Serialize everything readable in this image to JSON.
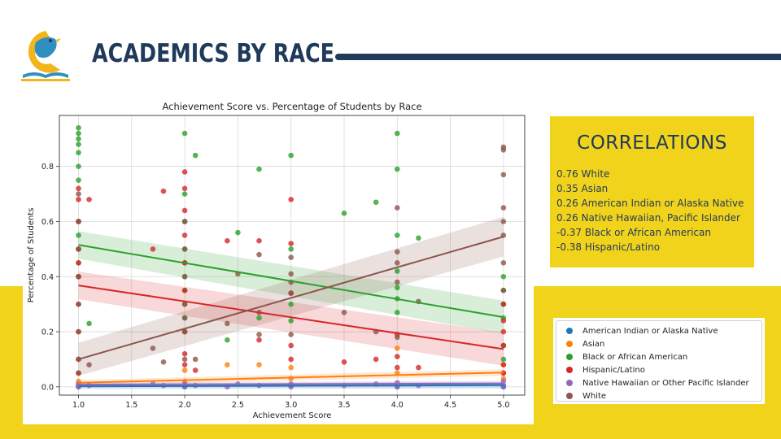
{
  "slide": {
    "title": "ACADEMICS BY RACE"
  },
  "correlations": {
    "heading": "CORRELATIONS",
    "items": [
      "0.76 White",
      "0.35 Asian",
      "0.26 American Indian or Alaska Native",
      "0.26 Native Hawaiian, Pacific Islander",
      "-0.37 Black or African American",
      "-0.38 Hispanic/Latino"
    ]
  },
  "chart_data": {
    "type": "scatter",
    "title": "Achievement Score vs. Percentage of Students by Race",
    "xlabel": "Achievement Score",
    "ylabel": "Percentage of Students",
    "xlim": [
      0.82,
      5.2
    ],
    "ylim": [
      -0.03,
      0.985
    ],
    "xticks": [
      "1.0",
      "1.5",
      "2.0",
      "2.5",
      "3.0",
      "3.5",
      "4.0",
      "4.5",
      "5.0"
    ],
    "yticks": [
      "0.0",
      "0.2",
      "0.4",
      "0.6",
      "0.8"
    ],
    "grid": true,
    "legend_position": "right, outside plot",
    "series": [
      {
        "name": "American Indian or Alaska Native",
        "color": "#1f77b4",
        "x": [
          1,
          1,
          2,
          2,
          3,
          4,
          5,
          5
        ],
        "y": [
          0.005,
          0.0,
          0.005,
          0.0,
          0.005,
          0.0,
          0.005,
          0.0
        ],
        "fit": [
          [
            1,
            0.002
          ],
          [
            5,
            0.006
          ]
        ]
      },
      {
        "name": "Asian",
        "color": "#ff7f0e",
        "x": [
          1,
          1,
          1,
          2,
          2,
          2.4,
          2.7,
          3,
          3,
          4,
          4,
          5,
          5,
          5
        ],
        "y": [
          0.01,
          0.02,
          0.05,
          0.02,
          0.06,
          0.08,
          0.08,
          0.03,
          0.07,
          0.05,
          0.14,
          0.05,
          0.08,
          0.03
        ],
        "fit": [
          [
            1,
            0.015
          ],
          [
            5,
            0.052
          ]
        ]
      },
      {
        "name": "Black or African American",
        "color": "#2ca02c",
        "x": [
          1,
          1,
          1,
          1,
          1,
          1,
          1,
          1,
          1,
          1,
          1,
          1,
          1.1,
          2,
          2,
          2,
          2,
          2,
          2,
          2,
          2,
          2,
          2,
          2.1,
          2.4,
          2.5,
          2.7,
          2.7,
          3,
          3,
          3,
          3,
          3.5,
          3.8,
          4,
          4,
          4,
          4,
          4,
          4,
          4,
          4.2,
          5,
          5,
          5,
          5,
          5,
          5
        ],
        "y": [
          0.94,
          0.92,
          0.9,
          0.88,
          0.85,
          0.8,
          0.75,
          0.6,
          0.55,
          0.5,
          0.45,
          0.4,
          0.23,
          0.92,
          0.7,
          0.6,
          0.5,
          0.45,
          0.4,
          0.35,
          0.3,
          0.25,
          0.2,
          0.84,
          0.17,
          0.56,
          0.79,
          0.25,
          0.84,
          0.5,
          0.3,
          0.24,
          0.63,
          0.67,
          0.92,
          0.79,
          0.55,
          0.42,
          0.36,
          0.32,
          0.27,
          0.54,
          0.4,
          0.35,
          0.3,
          0.25,
          0.15,
          0.1
        ],
        "fit": [
          [
            1,
            0.515
          ],
          [
            5,
            0.253
          ]
        ]
      },
      {
        "name": "Hispanic/Latino",
        "color": "#d62728",
        "x": [
          1,
          1,
          1,
          1,
          1,
          1,
          1,
          1,
          1,
          1,
          1.1,
          1.7,
          1.8,
          2,
          2,
          2,
          2,
          2,
          2,
          2,
          2,
          2,
          2.1,
          2.4,
          2.7,
          2.7,
          3,
          3,
          3,
          3,
          3,
          3.5,
          3.8,
          4,
          4,
          4,
          4.2,
          5,
          5,
          5,
          5,
          5,
          5
        ],
        "y": [
          0.72,
          0.68,
          0.6,
          0.5,
          0.45,
          0.4,
          0.3,
          0.2,
          0.1,
          0.05,
          0.68,
          0.5,
          0.71,
          0.78,
          0.72,
          0.64,
          0.55,
          0.45,
          0.35,
          0.2,
          0.12,
          0.08,
          0.06,
          0.53,
          0.53,
          0.17,
          0.68,
          0.52,
          0.34,
          0.15,
          0.1,
          0.09,
          0.1,
          0.19,
          0.11,
          0.07,
          0.07,
          0.3,
          0.24,
          0.2,
          0.15,
          0.08,
          0.05
        ],
        "fit": [
          [
            1,
            0.368
          ],
          [
            5,
            0.137
          ]
        ]
      },
      {
        "name": "Native Hawaiian or Other Pacific Islander",
        "color": "#9467bd",
        "x": [
          1,
          1,
          1.1,
          1.7,
          1.8,
          2,
          2,
          2.1,
          2.4,
          2.5,
          2.7,
          3,
          3,
          3.5,
          3.8,
          4,
          4,
          4.2,
          5,
          5
        ],
        "y": [
          0.01,
          0.0,
          0.005,
          0.01,
          0.005,
          0.01,
          0.0,
          0.005,
          0.0,
          0.01,
          0.005,
          0.01,
          0.0,
          0.005,
          0.01,
          0.015,
          0.0,
          0.005,
          0.02,
          0.0
        ],
        "fit": [
          [
            1,
            0.008
          ],
          [
            5,
            0.012
          ]
        ]
      },
      {
        "name": "White",
        "color": "#8c564b",
        "x": [
          1,
          1,
          1,
          1,
          1,
          1,
          1,
          1,
          1.1,
          1.7,
          1.8,
          2,
          2,
          2,
          2,
          2,
          2,
          2,
          2.1,
          2.4,
          2.5,
          2.7,
          2.7,
          2.7,
          3,
          3,
          3,
          3,
          3,
          3.5,
          3.8,
          4,
          4,
          4,
          4,
          4,
          4.2,
          5,
          5,
          5,
          5,
          5,
          5,
          5,
          5
        ],
        "y": [
          0.7,
          0.6,
          0.5,
          0.4,
          0.3,
          0.2,
          0.1,
          0.05,
          0.08,
          0.14,
          0.09,
          0.6,
          0.5,
          0.4,
          0.3,
          0.25,
          0.2,
          0.1,
          0.1,
          0.23,
          0.41,
          0.48,
          0.27,
          0.19,
          0.47,
          0.41,
          0.38,
          0.34,
          0.19,
          0.27,
          0.2,
          0.65,
          0.49,
          0.45,
          0.38,
          0.18,
          0.31,
          0.87,
          0.86,
          0.77,
          0.65,
          0.6,
          0.55,
          0.45,
          0.35
        ],
        "fit": [
          [
            1,
            0.1
          ],
          [
            5,
            0.545
          ]
        ]
      }
    ]
  }
}
